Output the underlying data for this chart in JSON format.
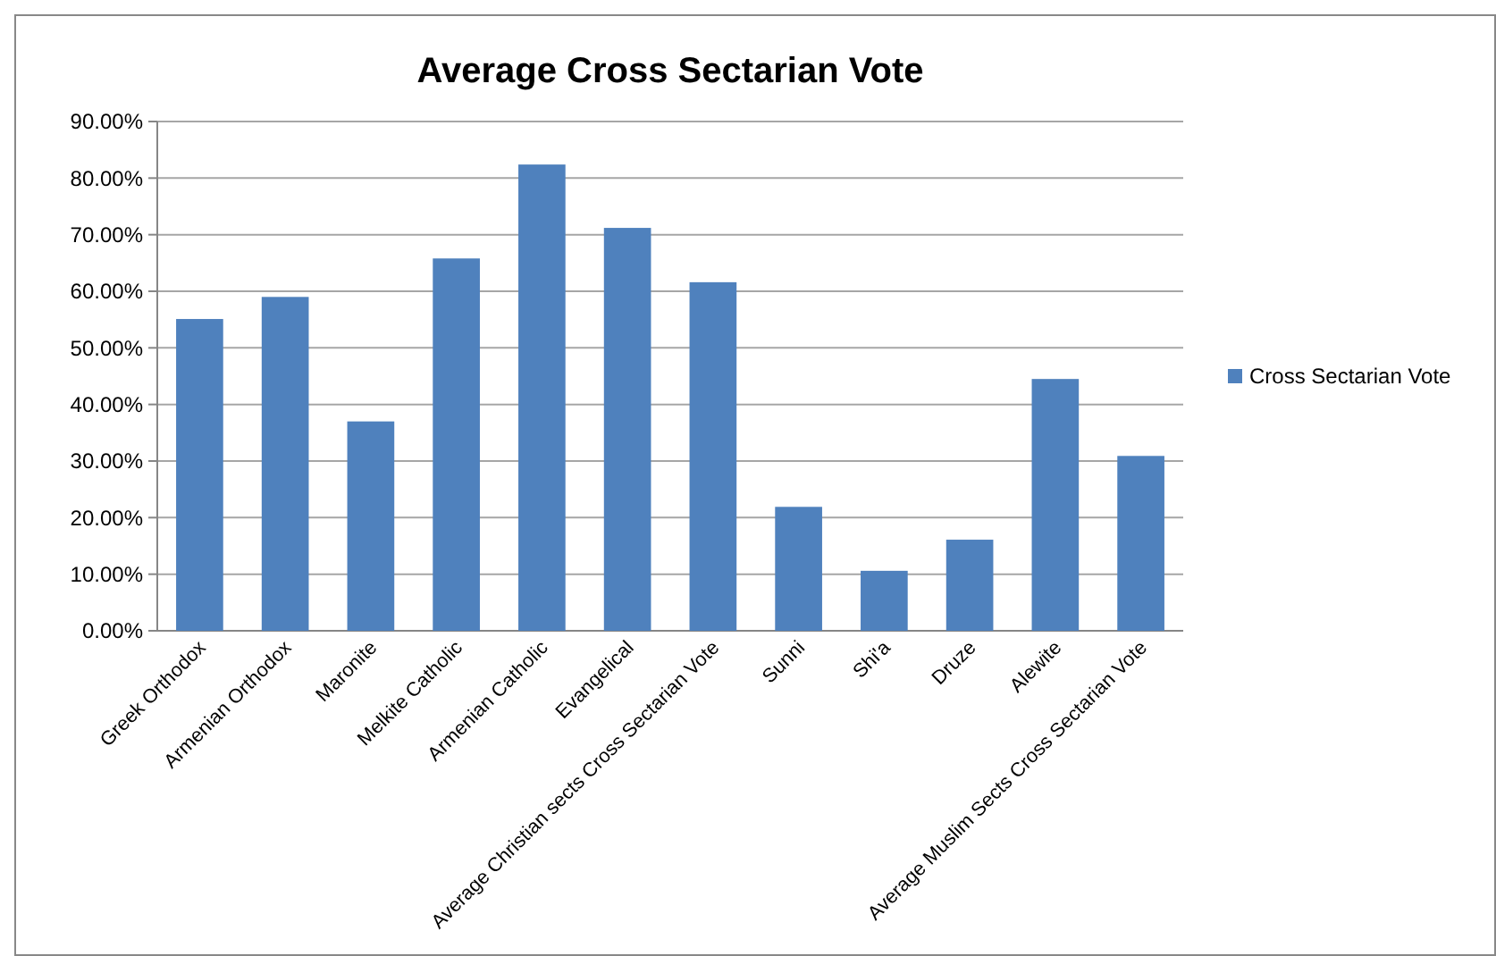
{
  "chart_data": {
    "type": "bar",
    "title": "Average Cross Sectarian Vote",
    "categories": [
      "Greek Orthodox",
      "Armenian Orthodox",
      "Maronite",
      "Melkite Catholic",
      "Armenian Catholic",
      "Evangelical",
      "Average Christian sects Cross Sectarian Vote",
      "Sunni",
      "Shi'a",
      "Druze",
      "Alewite",
      "Average Muslim Sects Cross Sectarian Vote"
    ],
    "series": [
      {
        "name": "Cross Sectarian Vote",
        "color": "#4f81bd",
        "values": [
          55.1,
          59.0,
          37.0,
          65.8,
          82.4,
          71.2,
          61.6,
          21.9,
          10.6,
          16.1,
          44.5,
          30.9
        ]
      }
    ],
    "ylim": [
      0,
      90
    ],
    "yticks": [
      {
        "value": 0,
        "label": "0.00%"
      },
      {
        "value": 10,
        "label": "10.00%"
      },
      {
        "value": 20,
        "label": "20.00%"
      },
      {
        "value": 30,
        "label": "30.00%"
      },
      {
        "value": 40,
        "label": "40.00%"
      },
      {
        "value": 50,
        "label": "50.00%"
      },
      {
        "value": 60,
        "label": "60.00%"
      },
      {
        "value": 70,
        "label": "70.00%"
      },
      {
        "value": 80,
        "label": "80.00%"
      },
      {
        "value": 90,
        "label": "90.00%"
      }
    ],
    "grid": "y",
    "legend": "right"
  }
}
